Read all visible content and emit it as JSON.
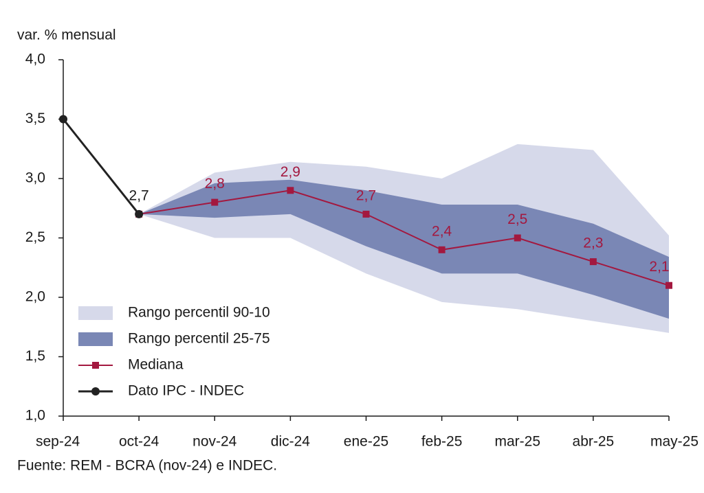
{
  "chart_data": {
    "type": "line",
    "y_axis_label": "var. % mensual",
    "source": "Fuente: REM - BCRA (nov-24) e INDEC.",
    "categories": [
      "sep-24",
      "oct-24",
      "nov-24",
      "dic-24",
      "ene-25",
      "feb-25",
      "mar-25",
      "abr-25",
      "may-25"
    ],
    "ylim": [
      1.0,
      4.0
    ],
    "yticks": [
      {
        "value": 1.0,
        "label": "1,0"
      },
      {
        "value": 1.5,
        "label": "1,5"
      },
      {
        "value": 2.0,
        "label": "2,0"
      },
      {
        "value": 2.5,
        "label": "2,5"
      },
      {
        "value": 3.0,
        "label": "3,0"
      },
      {
        "value": 3.5,
        "label": "3,5"
      },
      {
        "value": 4.0,
        "label": "4,0"
      }
    ],
    "bands": [
      {
        "name": "Rango percentil 90-10",
        "color": "#d6d9ea",
        "upper": [
          null,
          2.7,
          3.05,
          3.14,
          3.1,
          3.0,
          3.29,
          3.24,
          2.52
        ],
        "lower": [
          null,
          2.7,
          2.5,
          2.5,
          2.2,
          1.96,
          1.9,
          1.8,
          1.7
        ]
      },
      {
        "name": "Rango percentil 25-75",
        "color": "#7a87b5",
        "upper": [
          null,
          2.7,
          2.96,
          2.99,
          2.9,
          2.78,
          2.78,
          2.62,
          2.34
        ],
        "lower": [
          null,
          2.7,
          2.67,
          2.7,
          2.43,
          2.2,
          2.2,
          2.02,
          1.82
        ]
      }
    ],
    "series": [
      {
        "name": "Mediana",
        "color": "#a3183f",
        "marker": "square",
        "values": [
          null,
          2.7,
          2.8,
          2.9,
          2.7,
          2.4,
          2.5,
          2.3,
          2.1
        ],
        "value_labels": [
          null,
          null,
          "2,8",
          "2,9",
          "2,7",
          "2,4",
          "2,5",
          "2,3",
          "2,1"
        ]
      },
      {
        "name": "Dato IPC - INDEC",
        "color": "#222222",
        "marker": "circle",
        "values": [
          3.5,
          2.7,
          null,
          null,
          null,
          null,
          null,
          null,
          null
        ],
        "value_labels": [
          null,
          "2,7",
          null,
          null,
          null,
          null,
          null,
          null,
          null
        ]
      }
    ]
  }
}
